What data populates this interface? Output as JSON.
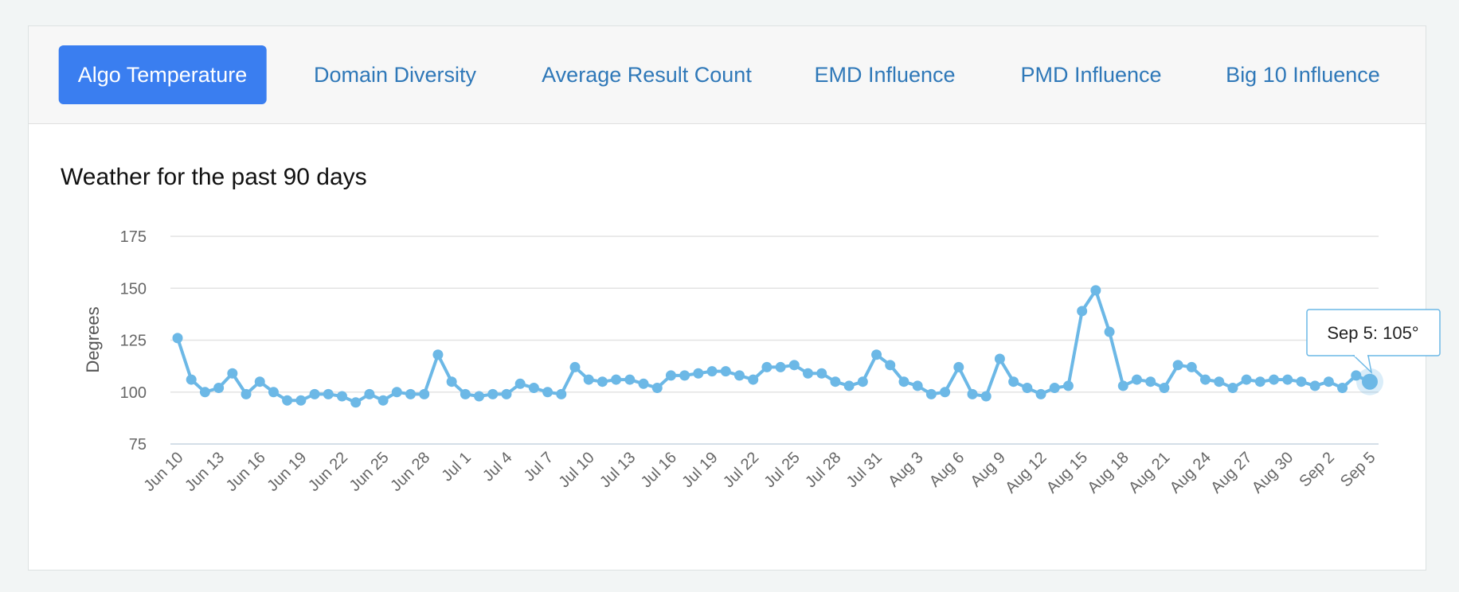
{
  "tabs": [
    "Algo Temperature",
    "Domain Diversity",
    "Average Result Count",
    "EMD Influence",
    "PMD Influence",
    "Big 10 Influence"
  ],
  "chart_data": {
    "type": "line",
    "title": "Weather for the past 90 days",
    "y_label": "Degrees",
    "categories": [
      "Jun 10",
      null,
      null,
      "Jun 13",
      null,
      null,
      "Jun 16",
      null,
      null,
      "Jun 19",
      null,
      null,
      "Jun 22",
      null,
      null,
      "Jun 25",
      null,
      null,
      "Jun 28",
      null,
      null,
      "Jul 1",
      null,
      null,
      "Jul 4",
      null,
      null,
      "Jul 7",
      null,
      null,
      "Jul 10",
      null,
      null,
      "Jul 13",
      null,
      null,
      "Jul 16",
      null,
      null,
      "Jul 19",
      null,
      null,
      "Jul 22",
      null,
      null,
      "Jul 25",
      null,
      null,
      "Jul 28",
      null,
      null,
      "Jul 31",
      null,
      null,
      "Aug 3",
      null,
      null,
      "Aug 6",
      null,
      null,
      "Aug 9",
      null,
      null,
      "Aug 12",
      null,
      null,
      "Aug 15",
      null,
      null,
      "Aug 18",
      null,
      null,
      "Aug 21",
      null,
      null,
      "Aug 24",
      null,
      null,
      "Aug 27",
      null,
      null,
      "Aug 30",
      null,
      null,
      "Sep 2",
      null,
      null,
      "Sep 5"
    ],
    "series": [
      {
        "name": "Degrees",
        "color": "#6cb8e6",
        "values": [
          126,
          106,
          100,
          102,
          109,
          99,
          105,
          100,
          96,
          96,
          99,
          99,
          98,
          95,
          99,
          96,
          100,
          99,
          99,
          118,
          105,
          99,
          98,
          99,
          99,
          104,
          102,
          100,
          99,
          112,
          106,
          105,
          106,
          106,
          104,
          102,
          108,
          108,
          109,
          110,
          110,
          108,
          106,
          112,
          112,
          113,
          109,
          109,
          105,
          103,
          105,
          118,
          113,
          105,
          103,
          99,
          100,
          112,
          99,
          98,
          116,
          105,
          102,
          99,
          102,
          103,
          139,
          149,
          129,
          103,
          106,
          105,
          102,
          113,
          112,
          106,
          105,
          102,
          106,
          105,
          106,
          106,
          105,
          103,
          105,
          102,
          108,
          105
        ]
      }
    ],
    "ylim": [
      75,
      175
    ],
    "yticks": [
      75,
      100,
      125,
      150,
      175
    ],
    "grid": true,
    "tooltip": "Sep 5: 105°"
  }
}
